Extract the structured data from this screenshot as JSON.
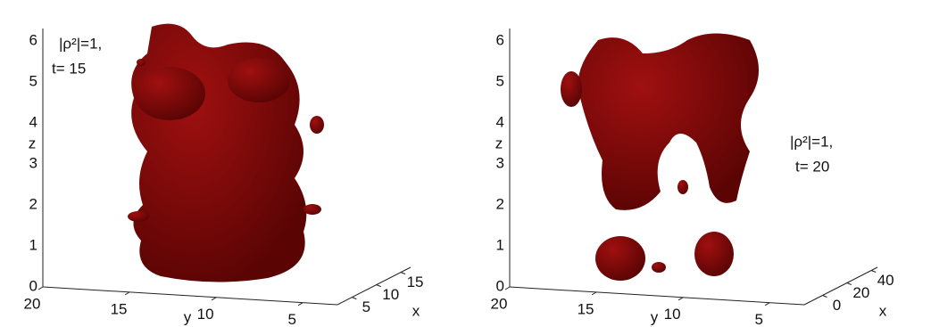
{
  "chart_data": [
    {
      "type": "isosurface3d",
      "annotations": [
        "|ρ²|=1,",
        "t= 15"
      ],
      "color": "#a01010",
      "xlabel": "x",
      "ylabel": "y",
      "zlabel": "z",
      "xlim": [
        2,
        17
      ],
      "xticks": [
        5,
        10,
        15
      ],
      "ylim": [
        20,
        3
      ],
      "yticks": [
        20,
        15,
        10,
        5
      ],
      "zlim": [
        0,
        6.3
      ],
      "zticks": [
        0,
        1,
        2,
        3,
        4,
        5,
        6
      ],
      "grid": true
    },
    {
      "type": "isosurface3d",
      "annotations": [
        "|ρ²|=1,",
        "t= 20"
      ],
      "color": "#a01010",
      "xlabel": "x",
      "ylabel": "y",
      "zlabel": "z",
      "xlim": [
        -15,
        45
      ],
      "xticks": [
        0,
        20,
        40
      ],
      "ylim": [
        20,
        3
      ],
      "yticks": [
        20,
        15,
        10,
        5
      ],
      "zlim": [
        0,
        6.3
      ],
      "zticks": [
        0,
        1,
        2,
        3,
        4,
        5,
        6
      ],
      "grid": true
    }
  ]
}
